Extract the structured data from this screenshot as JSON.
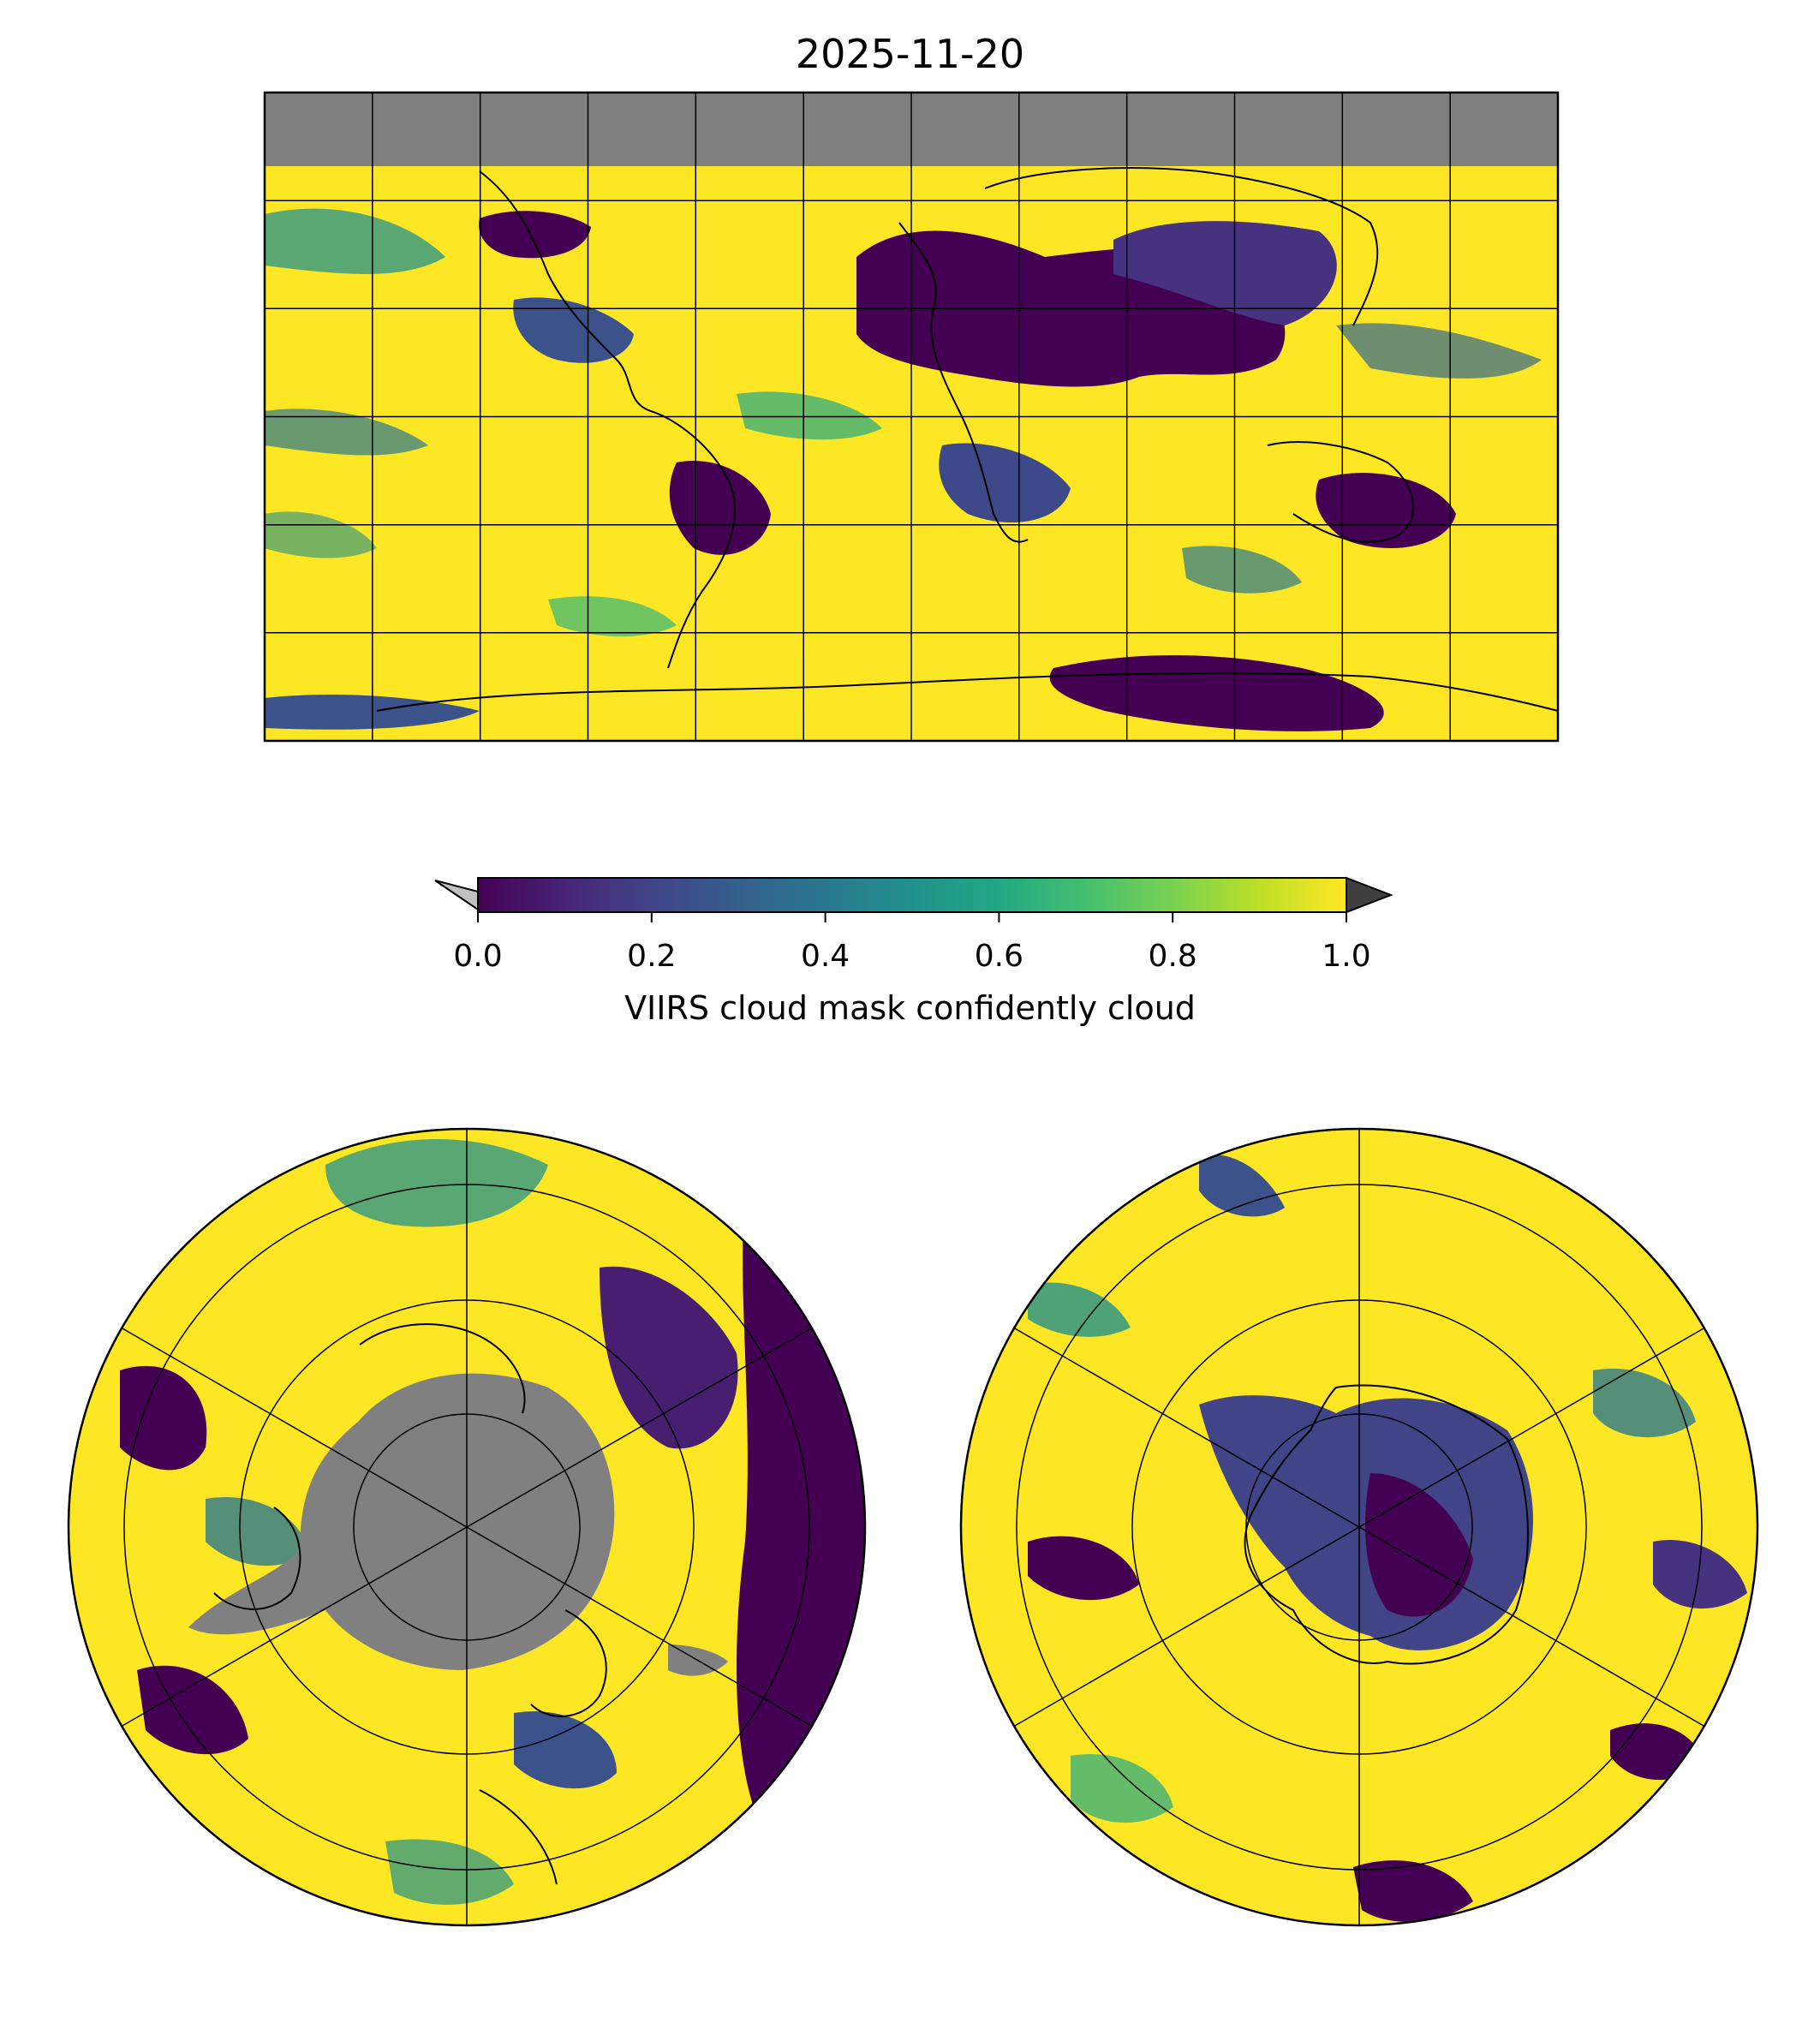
{
  "figure": {
    "title": "2025-11-20"
  },
  "colorbar": {
    "label": "VIIRS cloud mask confidently cloud",
    "ticks": [
      "0.0",
      "0.2",
      "0.4",
      "0.6",
      "0.8",
      "1.0"
    ],
    "tick_values": [
      0.0,
      0.2,
      0.4,
      0.6,
      0.8,
      1.0
    ],
    "range": [
      0.0,
      1.0
    ],
    "colormap": "viridis",
    "extend": "both",
    "under_color": "#c0c0c0",
    "over_color": "#404040"
  },
  "maps": [
    {
      "name": "global",
      "projection": "equirectangular"
    },
    {
      "name": "north-polar",
      "projection": "north-polar-stereographic"
    },
    {
      "name": "south-polar",
      "projection": "south-polar-stereographic"
    }
  ],
  "colors": {
    "no_data": "#808080",
    "cloud_high": "#fde725",
    "cloud_low": "#440154",
    "coastline": "#000000"
  }
}
